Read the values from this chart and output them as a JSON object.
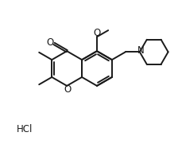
{
  "background_color": "#ffffff",
  "line_color": "#1a1a1a",
  "line_width": 1.4,
  "font_size": 8.5,
  "hcl_label": "HCl",
  "O_label": "O",
  "N_label": "N"
}
